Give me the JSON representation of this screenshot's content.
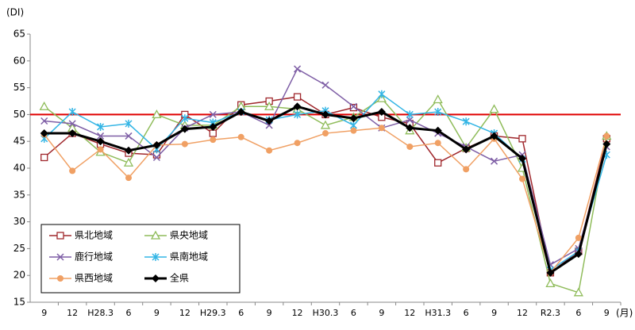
{
  "chart_data": {
    "type": "line",
    "ylabel": "(DI)",
    "xlabel": "(月)",
    "categories": [
      "9",
      "12",
      "H28.3",
      "6",
      "9",
      "12",
      "H29.3",
      "6",
      "9",
      "12",
      "H30.3",
      "6",
      "9",
      "12",
      "H31.3",
      "6",
      "9",
      "12",
      "R2.3",
      "6",
      "9"
    ],
    "series": [
      {
        "name": "県北地域",
        "color": "#a0282d",
        "marker": "square",
        "values": [
          42,
          46.5,
          44.5,
          42.8,
          42.5,
          50,
          46.5,
          51.8,
          52.5,
          53.3,
          50,
          51.3,
          49.5,
          48.3,
          41,
          43.7,
          46,
          45.5,
          20.5,
          24.5,
          45.5
        ]
      },
      {
        "name": "県央地域",
        "color": "#8fbc5a",
        "marker": "triangle",
        "values": [
          51.5,
          47.5,
          43,
          41,
          50,
          48,
          48,
          51.5,
          51.5,
          51,
          48,
          49.5,
          53,
          47,
          52.8,
          43.8,
          51,
          40,
          18.5,
          16.8,
          46
        ]
      },
      {
        "name": "鹿行地域",
        "color": "#7f5fa6",
        "marker": "x",
        "values": [
          48.8,
          48.3,
          46,
          46,
          42,
          47.5,
          50,
          50.5,
          48,
          58.5,
          55.5,
          51.5,
          47.5,
          49,
          46.5,
          44,
          41.3,
          42.5,
          22,
          25,
          44
        ]
      },
      {
        "name": "県南地域",
        "color": "#33b5e5",
        "marker": "asterisk",
        "values": [
          45.5,
          50.5,
          47.7,
          48.3,
          43.5,
          49.3,
          48.5,
          50.5,
          49,
          50,
          50.7,
          48,
          53.8,
          50,
          50.5,
          48.7,
          46.5,
          41.7,
          21,
          24.5,
          42.5
        ]
      },
      {
        "name": "県西地域",
        "color": "#f0a064",
        "marker": "circle",
        "values": [
          46.3,
          39.5,
          43.5,
          38.2,
          44.3,
          44.5,
          45.3,
          45.8,
          43.3,
          44.7,
          46.5,
          47,
          47.5,
          44,
          44.7,
          39.8,
          45.5,
          38,
          20.5,
          27,
          46
        ]
      },
      {
        "name": "全県",
        "color": "#000000",
        "marker": "diamond",
        "width": 3,
        "values": [
          46.5,
          46.5,
          45,
          43.3,
          44.3,
          47.3,
          47.7,
          50.5,
          48.8,
          51.5,
          50,
          49.3,
          50.5,
          47.5,
          47,
          43.5,
          46,
          41.8,
          20.5,
          24,
          44.5
        ]
      }
    ],
    "ylim": [
      15,
      65
    ],
    "yticks": [
      15,
      20,
      25,
      30,
      35,
      40,
      45,
      50,
      55,
      60,
      65
    ],
    "reference_line": 50,
    "reference_color": "#e00000",
    "grid": false,
    "legend": "lower left"
  }
}
